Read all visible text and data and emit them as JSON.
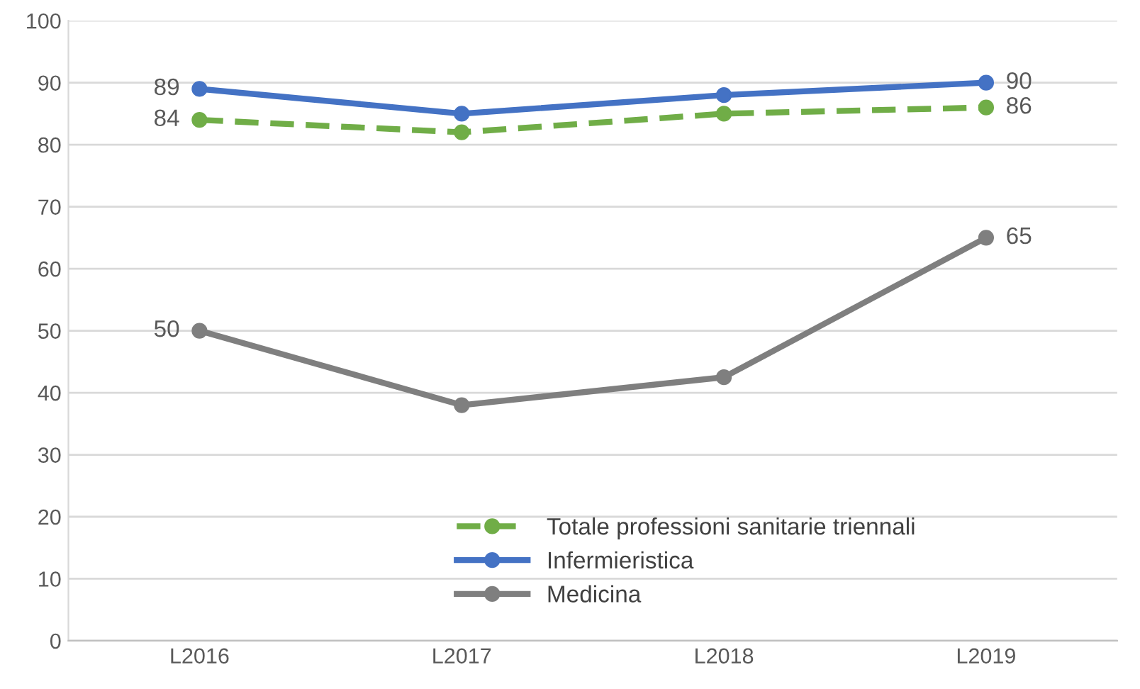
{
  "chart_data": {
    "type": "line",
    "categories": [
      "L2016",
      "L2017",
      "L2018",
      "L2019"
    ],
    "ylim": [
      0,
      100
    ],
    "yticks": [
      0,
      10,
      20,
      30,
      40,
      50,
      60,
      70,
      80,
      90,
      100
    ],
    "grid": "y",
    "legend": "bottom",
    "marker": "circle",
    "series": [
      {
        "name": "Totale professioni sanitarie triennali",
        "color": "#70ad47",
        "line_style": "dashed",
        "values": [
          84,
          82,
          85,
          86
        ],
        "value_labels": [
          "84",
          null,
          null,
          "86"
        ]
      },
      {
        "name": "Infermieristica",
        "color": "#4472c4",
        "line_style": "solid",
        "values": [
          89,
          85,
          88,
          90
        ],
        "value_labels": [
          "89",
          null,
          null,
          "90"
        ]
      },
      {
        "name": "Medicina",
        "color": "#7f7f7f",
        "line_style": "solid",
        "values": [
          50,
          38,
          42.5,
          65
        ],
        "value_labels": [
          "50",
          null,
          null,
          "65"
        ]
      }
    ]
  }
}
